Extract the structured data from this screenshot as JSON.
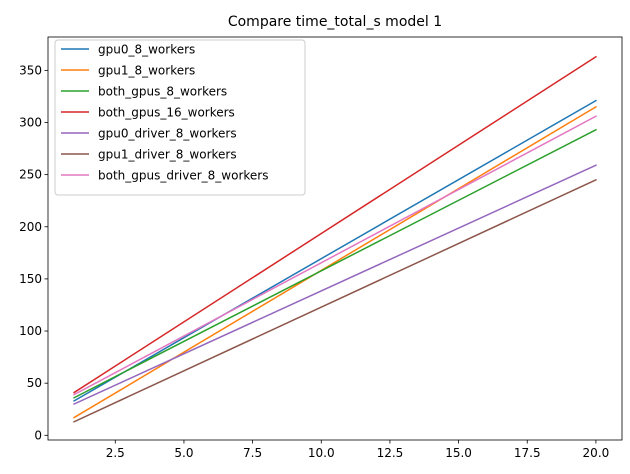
{
  "chart_data": {
    "type": "line",
    "title": "Compare time_total_s model 1",
    "xlabel": "",
    "ylabel": "",
    "xlim": [
      0.05,
      20.95
    ],
    "ylim": [
      -4.5,
      382
    ],
    "x_ticks": [
      2.5,
      5.0,
      7.5,
      10.0,
      12.5,
      15.0,
      17.5,
      20.0
    ],
    "x_tick_labels": [
      "2.5",
      "5.0",
      "7.5",
      "10.0",
      "12.5",
      "15.0",
      "17.5",
      "20.0"
    ],
    "y_ticks": [
      0,
      50,
      100,
      150,
      200,
      250,
      300,
      350
    ],
    "y_tick_labels": [
      "0",
      "50",
      "100",
      "150",
      "200",
      "250",
      "300",
      "350"
    ],
    "grid": false,
    "legend_position": "upper-left",
    "series": [
      {
        "name": "gpu0_8_workers",
        "color": "#1f77b4",
        "x": [
          1,
          20
        ],
        "y": [
          33,
          321
        ]
      },
      {
        "name": "gpu1_8_workers",
        "color": "#ff7f0e",
        "x": [
          1,
          20
        ],
        "y": [
          17,
          315
        ]
      },
      {
        "name": "both_gpus_8_workers",
        "color": "#2ca02c",
        "x": [
          1,
          20
        ],
        "y": [
          36,
          293
        ]
      },
      {
        "name": "both_gpus_16_workers",
        "color": "#d62728",
        "x": [
          1,
          20
        ],
        "y": [
          41,
          363
        ]
      },
      {
        "name": "gpu0_driver_8_workers",
        "color": "#9467bd",
        "x": [
          1,
          20
        ],
        "y": [
          30,
          259
        ]
      },
      {
        "name": "gpu1_driver_8_workers",
        "color": "#8c564b",
        "x": [
          1,
          20
        ],
        "y": [
          13,
          245
        ]
      },
      {
        "name": "both_gpus_driver_8_workers",
        "color": "#e377c2",
        "x": [
          1,
          20
        ],
        "y": [
          39,
          306
        ]
      }
    ]
  }
}
